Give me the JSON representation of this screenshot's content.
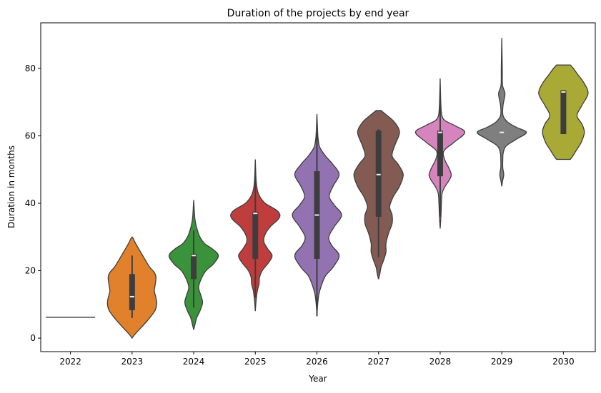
{
  "chart_data": {
    "type": "violin",
    "title": "Duration of the projects by end year",
    "xlabel": "Year",
    "ylabel": "Duration in months",
    "ylim": [
      -4,
      93.5
    ],
    "yticks": [
      0,
      20,
      40,
      60,
      80
    ],
    "categories": [
      "2022",
      "2023",
      "2024",
      "2025",
      "2026",
      "2027",
      "2028",
      "2029",
      "2030"
    ],
    "line_color": "#3d3d3d",
    "series": [
      {
        "name": "2022",
        "color": "#3d3d3d",
        "single_value": 6.2,
        "density": [],
        "box": null
      },
      {
        "name": "2023",
        "color": "#e1812c",
        "density": [
          [
            0,
            0
          ],
          [
            1,
            0.1
          ],
          [
            3,
            0.35
          ],
          [
            5,
            0.6
          ],
          [
            7,
            0.82
          ],
          [
            8.5,
            0.95
          ],
          [
            10.5,
            1
          ],
          [
            12.5,
            0.95
          ],
          [
            14,
            0.9
          ],
          [
            15.5,
            0.93
          ],
          [
            18,
            0.97
          ],
          [
            19.5,
            0.9
          ],
          [
            21,
            0.72
          ],
          [
            23,
            0.55
          ],
          [
            25.5,
            0.35
          ],
          [
            28,
            0.15
          ],
          [
            29.5,
            0.05
          ],
          [
            30,
            0
          ]
        ],
        "box": {
          "whisker_low": 6,
          "q1": 8.3,
          "median": 12.3,
          "q3": 19,
          "whisker_high": 24.5
        }
      },
      {
        "name": "2024",
        "color": "#3a923a",
        "density": [
          [
            2.5,
            0
          ],
          [
            4,
            0.05
          ],
          [
            6,
            0.12
          ],
          [
            8,
            0.25
          ],
          [
            10.5,
            0.36
          ],
          [
            12.5,
            0.3
          ],
          [
            15,
            0.2
          ],
          [
            17.5,
            0.3
          ],
          [
            20,
            0.5
          ],
          [
            22,
            0.8
          ],
          [
            24.5,
            1
          ],
          [
            26.5,
            0.75
          ],
          [
            28,
            0.45
          ],
          [
            30,
            0.25
          ],
          [
            32,
            0.15
          ],
          [
            34,
            0.08
          ],
          [
            36,
            0.04
          ],
          [
            41,
            0
          ]
        ],
        "box": {
          "whisker_low": 9,
          "q1": 17.5,
          "median": 24.5,
          "q3": 25,
          "whisker_high": 32
        }
      },
      {
        "name": "2025",
        "color": "#c03d3e",
        "density": [
          [
            8,
            0
          ],
          [
            11,
            0.03
          ],
          [
            14,
            0.08
          ],
          [
            16,
            0.15
          ],
          [
            18,
            0.17
          ],
          [
            20,
            0.28
          ],
          [
            22.5,
            0.55
          ],
          [
            24.5,
            0.68
          ],
          [
            26.5,
            0.5
          ],
          [
            28.5,
            0.35
          ],
          [
            30.5,
            0.38
          ],
          [
            33,
            0.6
          ],
          [
            35,
            0.9
          ],
          [
            36.5,
            1
          ],
          [
            38,
            0.85
          ],
          [
            40,
            0.4
          ],
          [
            42,
            0.18
          ],
          [
            44,
            0.08
          ],
          [
            47,
            0.03
          ],
          [
            53,
            0
          ]
        ],
        "box": {
          "whisker_low": 12,
          "q1": 23.5,
          "median": 37,
          "q3": 37.5,
          "whisker_high": 49
        }
      },
      {
        "name": "2026",
        "color": "#9372b2",
        "density": [
          [
            6.5,
            0
          ],
          [
            10,
            0.03
          ],
          [
            13,
            0.08
          ],
          [
            16,
            0.2
          ],
          [
            18.5,
            0.35
          ],
          [
            21,
            0.65
          ],
          [
            24.5,
            0.9
          ],
          [
            27.5,
            0.6
          ],
          [
            30,
            0.48
          ],
          [
            33,
            0.7
          ],
          [
            36.5,
            1
          ],
          [
            39.5,
            0.7
          ],
          [
            42,
            0.5
          ],
          [
            45,
            0.65
          ],
          [
            48.5,
            0.9
          ],
          [
            51.5,
            0.65
          ],
          [
            54,
            0.35
          ],
          [
            56.5,
            0.12
          ],
          [
            59,
            0.05
          ],
          [
            61,
            0.03
          ],
          [
            66.5,
            0
          ]
        ],
        "box": {
          "whisker_low": 6.5,
          "q1": 23.5,
          "median": 36.5,
          "q3": 49.5,
          "whisker_high": 61
        }
      },
      {
        "name": "2027",
        "color": "#845b53",
        "density": [
          [
            17.5,
            0
          ],
          [
            19,
            0.05
          ],
          [
            21,
            0.1
          ],
          [
            23,
            0.2
          ],
          [
            25.5,
            0.3
          ],
          [
            28,
            0.3
          ],
          [
            31,
            0.4
          ],
          [
            34,
            0.55
          ],
          [
            36.5,
            0.55
          ],
          [
            39,
            0.45
          ],
          [
            42,
            0.6
          ],
          [
            45,
            0.85
          ],
          [
            48.5,
            1
          ],
          [
            51.5,
            0.8
          ],
          [
            54,
            0.55
          ],
          [
            57,
            0.65
          ],
          [
            61,
            0.85
          ],
          [
            64,
            0.65
          ],
          [
            66,
            0.35
          ],
          [
            67.5,
            0.1
          ]
        ],
        "box": {
          "whisker_low": 24,
          "q1": 36,
          "median": 48.5,
          "q3": 61.5,
          "whisker_high": 62
        }
      },
      {
        "name": "2028",
        "color": "#d684bd",
        "density": [
          [
            32.5,
            0
          ],
          [
            36,
            0.03
          ],
          [
            40,
            0.05
          ],
          [
            43,
            0.08
          ],
          [
            45,
            0.2
          ],
          [
            47,
            0.38
          ],
          [
            48.5,
            0.45
          ],
          [
            50.5,
            0.35
          ],
          [
            53,
            0.18
          ],
          [
            55.5,
            0.15
          ],
          [
            58,
            0.55
          ],
          [
            61,
            1
          ],
          [
            63,
            0.6
          ],
          [
            64.5,
            0.2
          ],
          [
            66,
            0.07
          ],
          [
            69,
            0.03
          ],
          [
            77,
            0
          ]
        ],
        "box": {
          "whisker_low": 36,
          "q1": 48,
          "median": 61,
          "q3": 61.5,
          "whisker_high": 73
        }
      },
      {
        "name": "2029",
        "color": "#7f7f7f",
        "density": [
          [
            45,
            0
          ],
          [
            46.5,
            0.03
          ],
          [
            48.5,
            0.08
          ],
          [
            50.5,
            0.04
          ],
          [
            53,
            0.04
          ],
          [
            55,
            0.06
          ],
          [
            57,
            0.18
          ],
          [
            59,
            0.6
          ],
          [
            61,
            1
          ],
          [
            62.5,
            0.6
          ],
          [
            64,
            0.25
          ],
          [
            66,
            0.05
          ],
          [
            69,
            0.05
          ],
          [
            72.5,
            0.13
          ],
          [
            75,
            0.03
          ],
          [
            80,
            0.02
          ],
          [
            89,
            0
          ]
        ],
        "box": {
          "whisker_low": 61,
          "q1": 61,
          "median": 61,
          "q3": 61,
          "whisker_high": 61
        }
      },
      {
        "name": "2030",
        "color": "#a9aa35",
        "density": [
          [
            53,
            0.28
          ],
          [
            54,
            0.38
          ],
          [
            56,
            0.55
          ],
          [
            58,
            0.72
          ],
          [
            61,
            0.85
          ],
          [
            63.5,
            0.75
          ],
          [
            66,
            0.55
          ],
          [
            69,
            0.75
          ],
          [
            72.5,
            1
          ],
          [
            75.5,
            0.85
          ],
          [
            78,
            0.6
          ],
          [
            80,
            0.4
          ],
          [
            81,
            0.28
          ]
        ],
        "box": {
          "whisker_low": 60.5,
          "q1": 60.5,
          "median": 73,
          "q3": 73.5,
          "whisker_high": 73.5
        }
      }
    ]
  }
}
